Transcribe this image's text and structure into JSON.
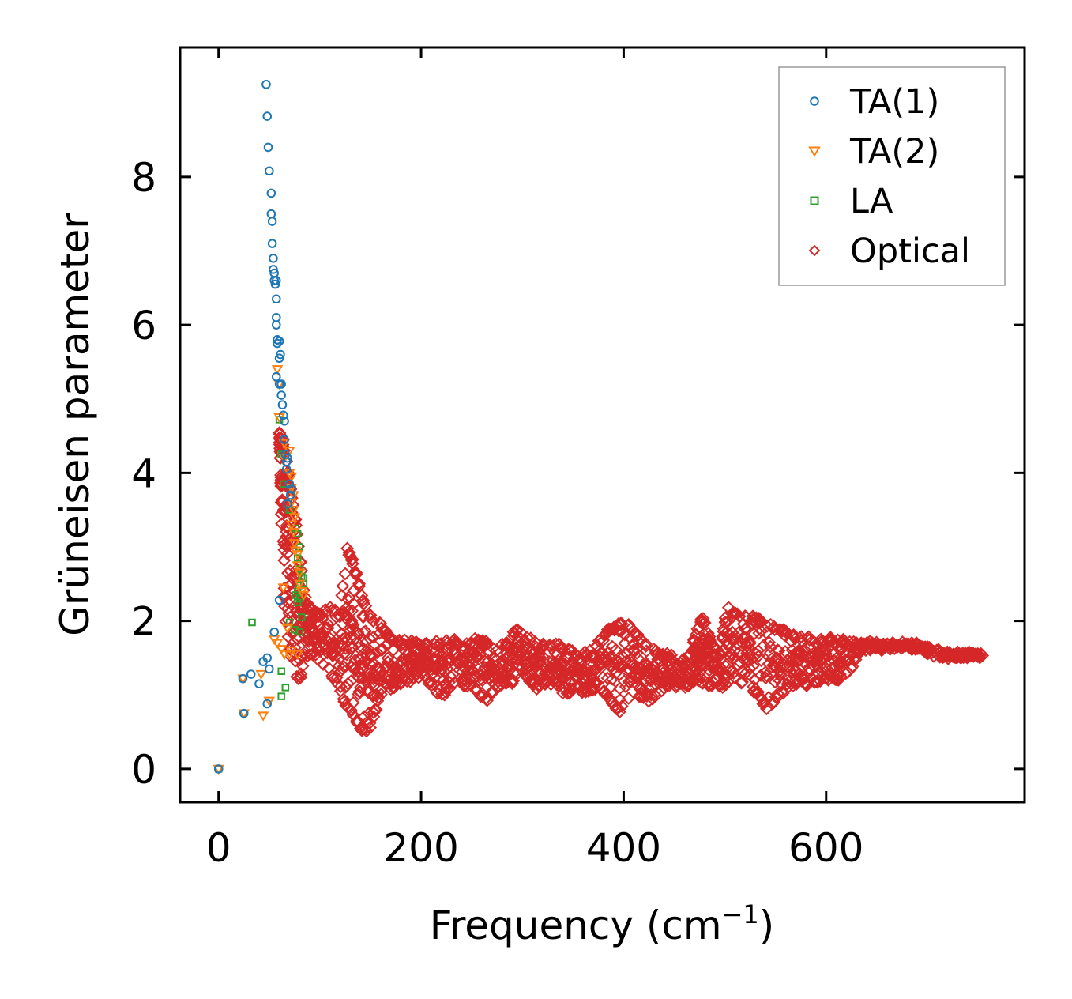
{
  "chart_data": {
    "type": "scatter",
    "title": "",
    "xlabel": "Frequency (cm",
    "xlabel_sup": "−1",
    "xlabel_close": ")",
    "ylabel": "Grüneisen parameter",
    "xlim": [
      -38,
      796
    ],
    "ylim": [
      -0.45,
      9.75
    ],
    "xticks": [
      0,
      200,
      400,
      600
    ],
    "xtick_labels": [
      "0",
      "200",
      "400",
      "600"
    ],
    "yticks": [
      0,
      2,
      4,
      6,
      8
    ],
    "ytick_labels": [
      "0",
      "2",
      "4",
      "6",
      "8"
    ],
    "legend_position": "top-right",
    "grid": false,
    "series": [
      {
        "name": "TA(1)",
        "marker": "circle",
        "color": "#1f77b4",
        "points": [
          [
            0,
            0
          ],
          [
            25,
            0.75
          ],
          [
            24,
            1.22
          ],
          [
            32,
            1.28
          ],
          [
            40,
            1.15
          ],
          [
            44,
            1.45
          ],
          [
            48,
            1.5
          ],
          [
            50,
            1.35
          ],
          [
            48,
            0.88
          ],
          [
            55,
            1.85
          ],
          [
            60,
            2.28
          ],
          [
            47,
            9.25
          ],
          [
            48,
            8.82
          ],
          [
            49,
            8.4
          ],
          [
            50,
            8.08
          ],
          [
            52,
            7.78
          ],
          [
            52,
            7.5
          ],
          [
            53,
            7.4
          ],
          [
            53,
            7.1
          ],
          [
            54,
            6.9
          ],
          [
            54,
            6.75
          ],
          [
            55,
            6.7
          ],
          [
            55,
            6.6
          ],
          [
            56,
            6.55
          ],
          [
            57,
            6.6
          ],
          [
            57,
            6.35
          ],
          [
            57,
            6.1
          ],
          [
            57,
            6.0
          ],
          [
            58,
            5.8
          ],
          [
            58,
            5.75
          ],
          [
            60,
            5.78
          ],
          [
            60,
            5.55
          ],
          [
            61,
            5.6
          ],
          [
            57,
            5.3
          ],
          [
            60,
            5.2
          ],
          [
            62,
            5.2
          ],
          [
            62,
            5.05
          ],
          [
            63,
            4.92
          ],
          [
            64,
            4.78
          ],
          [
            65,
            4.7
          ],
          [
            65,
            4.45
          ],
          [
            66,
            4.25
          ],
          [
            67,
            4.15
          ],
          [
            68,
            4.2
          ],
          [
            67,
            4.05
          ],
          [
            70,
            3.85
          ],
          [
            72,
            3.78
          ],
          [
            71,
            3.7
          ],
          [
            68,
            3.58
          ]
        ]
      },
      {
        "name": "TA(2)",
        "marker": "triangle-down",
        "color": "#ff7f0e",
        "points": [
          [
            0,
            0
          ],
          [
            25,
            0.75
          ],
          [
            24,
            1.22
          ],
          [
            42,
            1.28
          ],
          [
            44,
            0.72
          ],
          [
            50,
            0.92
          ],
          [
            58,
            5.4
          ],
          [
            60,
            5.2
          ],
          [
            60,
            4.75
          ],
          [
            65,
            4.4
          ],
          [
            65,
            4.2
          ],
          [
            70,
            4.3
          ],
          [
            70,
            4.0
          ],
          [
            72,
            3.95
          ],
          [
            72,
            3.8
          ],
          [
            72,
            3.6
          ],
          [
            74,
            3.7
          ],
          [
            74,
            3.5
          ],
          [
            75,
            3.4
          ],
          [
            72,
            3.3
          ],
          [
            74,
            3.2
          ],
          [
            75,
            3.05
          ],
          [
            76,
            2.95
          ],
          [
            78,
            2.9
          ],
          [
            78,
            2.75
          ],
          [
            80,
            2.65
          ],
          [
            80,
            2.5
          ],
          [
            82,
            2.4
          ],
          [
            84,
            2.35
          ],
          [
            64,
            2.45
          ],
          [
            55,
            1.75
          ],
          [
            58,
            1.7
          ],
          [
            62,
            1.62
          ],
          [
            65,
            1.55
          ],
          [
            70,
            1.55
          ],
          [
            72,
            1.6
          ],
          [
            78,
            1.55
          ],
          [
            68,
            1.9
          ]
        ]
      },
      {
        "name": "LA",
        "marker": "square",
        "color": "#2ca02c",
        "points": [
          [
            0,
            0
          ],
          [
            33,
            1.98
          ],
          [
            62,
            0.98
          ],
          [
            66,
            1.1
          ],
          [
            62,
            1.32
          ],
          [
            60,
            4.72
          ],
          [
            62,
            4.25
          ],
          [
            64,
            3.85
          ],
          [
            70,
            3.5
          ],
          [
            76,
            3.25
          ],
          [
            78,
            3.18
          ],
          [
            80,
            3.0
          ],
          [
            78,
            2.85
          ],
          [
            80,
            2.7
          ],
          [
            82,
            2.6
          ],
          [
            84,
            2.58
          ],
          [
            84,
            2.5
          ],
          [
            80,
            2.48
          ],
          [
            78,
            2.4
          ],
          [
            76,
            2.35
          ],
          [
            80,
            2.3
          ],
          [
            78,
            2.25
          ],
          [
            82,
            2.05
          ],
          [
            70,
            1.98
          ],
          [
            75,
            1.88
          ],
          [
            80,
            1.85
          ]
        ]
      },
      {
        "name": "Optical",
        "marker": "diamond",
        "color": "#d62728",
        "points": []
      }
    ],
    "optical_envelope": [
      [
        60,
        4.6,
        4.6
      ],
      [
        62,
        3.4,
        4.45
      ],
      [
        66,
        2.0,
        4.3
      ],
      [
        70,
        1.6,
        3.9
      ],
      [
        75,
        1.3,
        3.5
      ],
      [
        80,
        1.1,
        2.9
      ],
      [
        85,
        1.5,
        2.4
      ],
      [
        92,
        1.55,
        2.2
      ],
      [
        100,
        1.45,
        2.1
      ],
      [
        110,
        1.3,
        2.2
      ],
      [
        120,
        1.0,
        2.1
      ],
      [
        126,
        0.85,
        3.05
      ],
      [
        132,
        0.7,
        2.85
      ],
      [
        138,
        0.6,
        2.6
      ],
      [
        143,
        0.45,
        2.3
      ],
      [
        150,
        0.55,
        2.1
      ],
      [
        158,
        0.9,
        2.0
      ],
      [
        166,
        1.05,
        1.9
      ],
      [
        175,
        1.1,
        1.75
      ],
      [
        185,
        1.15,
        1.75
      ],
      [
        195,
        1.2,
        1.75
      ],
      [
        205,
        1.2,
        1.7
      ],
      [
        215,
        1.0,
        1.75
      ],
      [
        225,
        1.0,
        1.75
      ],
      [
        235,
        1.15,
        1.75
      ],
      [
        245,
        1.1,
        1.75
      ],
      [
        255,
        1.0,
        1.8
      ],
      [
        265,
        0.9,
        1.75
      ],
      [
        275,
        1.05,
        1.65
      ],
      [
        285,
        1.15,
        1.75
      ],
      [
        295,
        1.15,
        1.92
      ],
      [
        305,
        1.2,
        1.8
      ],
      [
        315,
        1.05,
        1.7
      ],
      [
        325,
        1.1,
        1.7
      ],
      [
        335,
        1.05,
        1.7
      ],
      [
        345,
        1.0,
        1.65
      ],
      [
        355,
        1.05,
        1.55
      ],
      [
        365,
        1.0,
        1.6
      ],
      [
        375,
        1.05,
        1.75
      ],
      [
        385,
        0.95,
        1.9
      ],
      [
        395,
        0.75,
        2.0
      ],
      [
        405,
        0.9,
        1.95
      ],
      [
        415,
        0.95,
        1.8
      ],
      [
        425,
        0.9,
        1.65
      ],
      [
        435,
        1.0,
        1.6
      ],
      [
        445,
        1.1,
        1.55
      ],
      [
        455,
        1.1,
        1.5
      ],
      [
        465,
        1.1,
        1.55
      ],
      [
        472,
        1.2,
        1.9
      ],
      [
        478,
        1.15,
        2.1
      ],
      [
        485,
        1.1,
        1.8
      ],
      [
        495,
        1.1,
        1.6
      ],
      [
        502,
        1.1,
        2.2
      ],
      [
        512,
        1.2,
        2.1
      ],
      [
        522,
        1.1,
        2.1
      ],
      [
        532,
        1.0,
        2.05
      ],
      [
        542,
        0.75,
        1.95
      ],
      [
        552,
        0.95,
        1.95
      ],
      [
        562,
        1.05,
        1.85
      ],
      [
        572,
        1.15,
        1.8
      ],
      [
        582,
        1.1,
        1.8
      ],
      [
        592,
        1.15,
        1.78
      ],
      [
        602,
        1.2,
        1.78
      ],
      [
        612,
        1.2,
        1.78
      ],
      [
        622,
        1.25,
        1.75
      ],
      [
        635,
        1.6,
        1.75
      ],
      [
        650,
        1.6,
        1.72
      ],
      [
        665,
        1.6,
        1.72
      ],
      [
        680,
        1.62,
        1.72
      ],
      [
        695,
        1.58,
        1.7
      ],
      [
        710,
        1.5,
        1.62
      ],
      [
        725,
        1.48,
        1.58
      ],
      [
        740,
        1.5,
        1.58
      ],
      [
        755,
        1.5,
        1.58
      ]
    ]
  }
}
